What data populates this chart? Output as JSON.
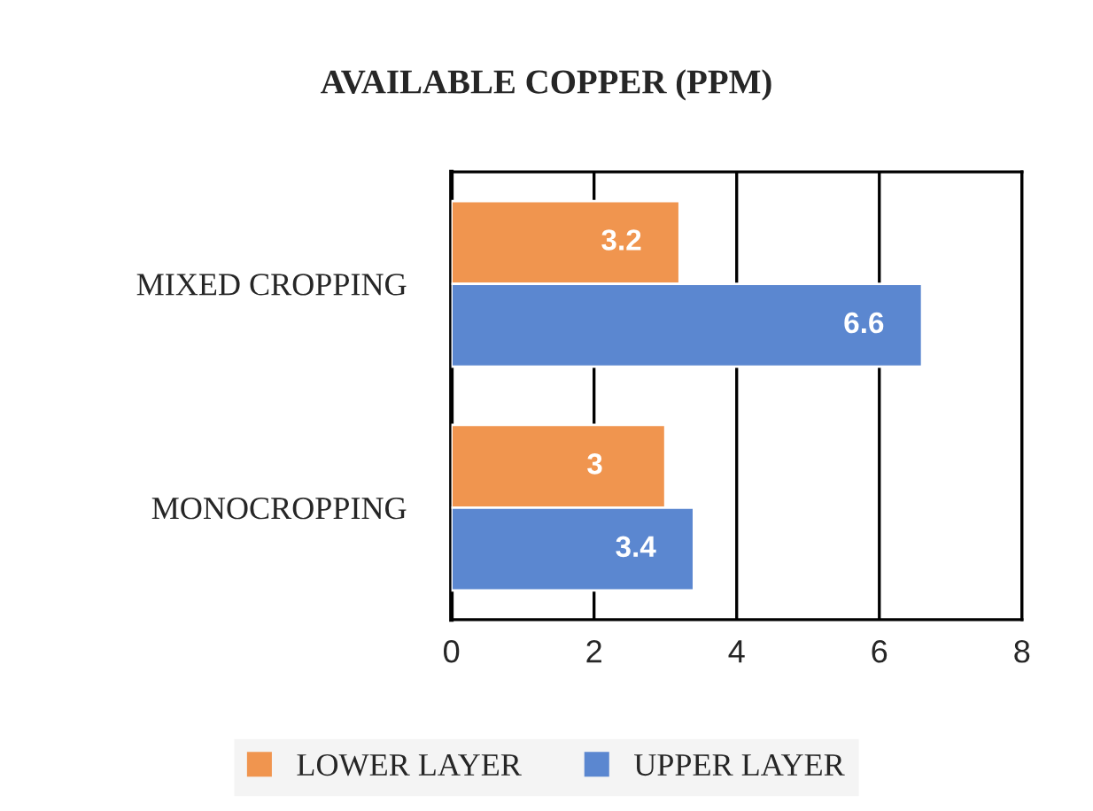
{
  "chart_data": {
    "type": "bar",
    "orientation": "horizontal",
    "title": "AVAILABLE COPPER (PPM)",
    "categories": [
      "MIXED CROPPING",
      "MONOCROPPING"
    ],
    "series": [
      {
        "name": "LOWER LAYER",
        "color": "#f0954f",
        "values": [
          3.2,
          3
        ]
      },
      {
        "name": "UPPER LAYER",
        "color": "#5b87d0",
        "values": [
          6.6,
          3.4
        ]
      }
    ],
    "xlim": [
      0,
      8
    ],
    "xticks": [
      0,
      2,
      4,
      6,
      8
    ],
    "grid": "x",
    "legend": "bottom",
    "data_labels": true
  }
}
